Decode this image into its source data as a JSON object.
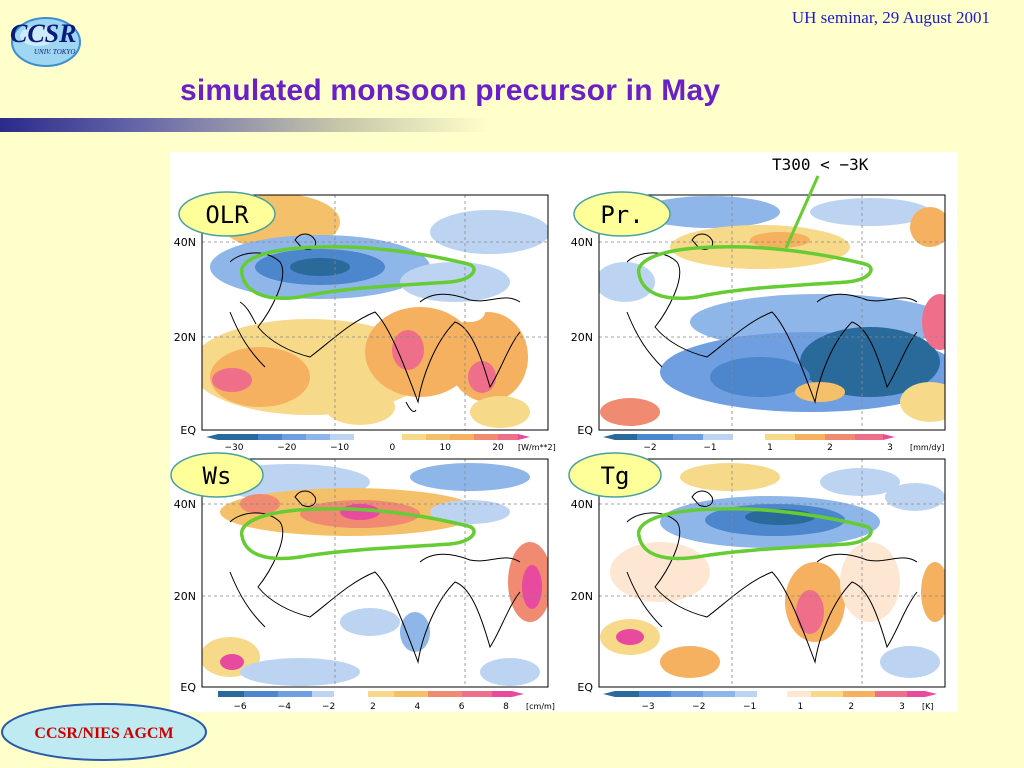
{
  "header": {
    "seminar": "UH seminar, 29 August 2001",
    "title": "simulated monsoon precursor in May"
  },
  "logo": {
    "text": "CCSR",
    "sub": "UNIV. TOKYO"
  },
  "annotation": "T300 < −3K",
  "latitude_labels": [
    "40N",
    "20N",
    "EQ"
  ],
  "panels": [
    {
      "label": "OLR",
      "colorbar": {
        "ticks": [
          "−30",
          "−20",
          "−10",
          "0",
          "10",
          "20"
        ],
        "unit": "[W/m**2]"
      }
    },
    {
      "label": "Pr.",
      "colorbar": {
        "ticks": [
          "−2",
          "−1",
          "1",
          "2",
          "3"
        ],
        "unit": "[mm/dy]"
      }
    },
    {
      "label": "Ws",
      "colorbar": {
        "ticks": [
          "−6",
          "−4",
          "−2",
          "2",
          "4",
          "6",
          "8"
        ],
        "unit": "[cm/m]"
      }
    },
    {
      "label": "Tg",
      "colorbar": {
        "ticks": [
          "−3",
          "−2",
          "−1",
          "1",
          "2",
          "3"
        ],
        "unit": "[K]"
      }
    }
  ],
  "footer": {
    "label": "CCSR/NIES AGCM"
  },
  "colors": {
    "title": "#6a1fc8",
    "seminar": "#1a1acc",
    "footer_text": "#cc0000",
    "contour": "#66cc33"
  }
}
